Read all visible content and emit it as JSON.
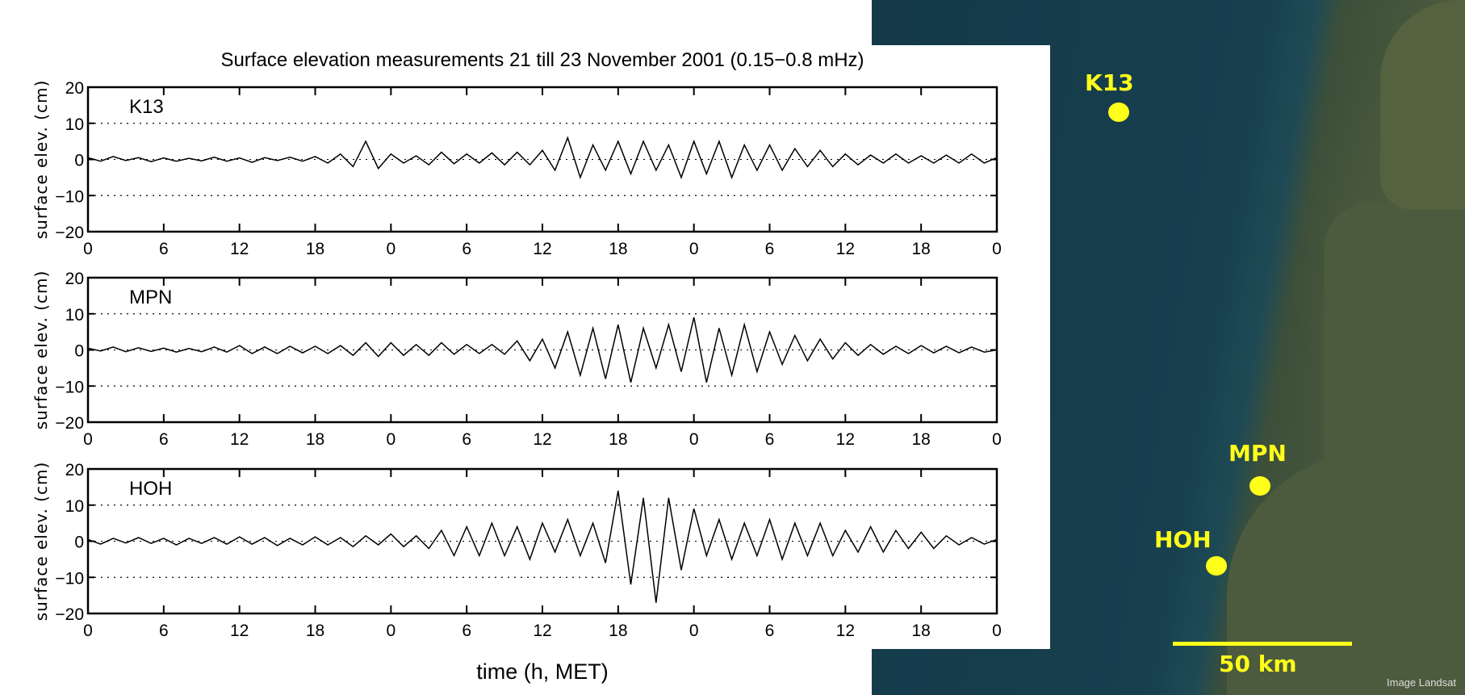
{
  "chart_data": {
    "type": "line",
    "title": "Surface elevation measurements 21 till 23 November 2001 (0.15−0.8 mHz)",
    "xlabel": "time (h, MET)",
    "ylabel": "surface elev. (cm)",
    "xlim": [
      0,
      72
    ],
    "ylim": [
      -20,
      20
    ],
    "xticks": [
      0,
      6,
      12,
      18,
      24,
      30,
      36,
      42,
      48,
      54,
      60,
      66,
      72
    ],
    "xtick_labels": [
      "0",
      "6",
      "12",
      "18",
      "0",
      "6",
      "12",
      "18",
      "0",
      "6",
      "12",
      "18",
      "0"
    ],
    "yticks": [
      -20,
      -10,
      0,
      10,
      20
    ],
    "ytick_labels": [
      "−20",
      "−10",
      "0",
      "10",
      "20"
    ],
    "grid": "dotted at ±10",
    "x_step_hours": 1,
    "series": [
      {
        "name": "K13",
        "values": [
          0.5,
          -0.5,
          0.8,
          -0.3,
          0.5,
          -0.6,
          0.4,
          -0.5,
          0.3,
          -0.4,
          0.6,
          -0.5,
          0.4,
          -0.8,
          0.5,
          -0.3,
          0.6,
          -0.5,
          0.8,
          -1.0,
          1.5,
          -2,
          5,
          -2.5,
          1.5,
          -1,
          1,
          -1.5,
          2,
          -1.2,
          1.5,
          -1,
          1.8,
          -1.5,
          2,
          -1.5,
          2.5,
          -3,
          6,
          -5,
          4,
          -3,
          5,
          -4,
          5,
          -3,
          4,
          -5,
          5,
          -4,
          5,
          -5,
          4,
          -3,
          4,
          -3,
          3,
          -2,
          2.5,
          -2,
          1.5,
          -1.5,
          1.2,
          -1,
          1.5,
          -1,
          1,
          -1,
          1.2,
          -1,
          1.5,
          -1,
          0.5
        ]
      },
      {
        "name": "MPN",
        "values": [
          0.5,
          -0.3,
          0.8,
          -0.5,
          0.6,
          -0.4,
          0.5,
          -0.6,
          0.4,
          -0.5,
          0.8,
          -0.6,
          1.2,
          -1,
          0.8,
          -1,
          1,
          -0.8,
          1,
          -1,
          1.2,
          -1.5,
          2,
          -1.8,
          2,
          -1.5,
          1.5,
          -1.5,
          2,
          -1.2,
          1.5,
          -1,
          1.5,
          -1.2,
          2.5,
          -3,
          3,
          -5,
          5,
          -7,
          6,
          -8,
          7,
          -9,
          6,
          -5,
          7,
          -6,
          9,
          -9,
          6,
          -7,
          7,
          -6,
          5,
          -4,
          4,
          -3,
          3,
          -2.5,
          2,
          -1.5,
          1.5,
          -1.2,
          1,
          -1,
          1.2,
          -0.8,
          1,
          -0.8,
          0.8,
          -0.6,
          0
        ]
      },
      {
        "name": "HOH",
        "values": [
          0.5,
          -0.8,
          0.8,
          -0.5,
          1,
          -0.6,
          0.8,
          -1,
          0.8,
          -0.6,
          1,
          -0.8,
          1.2,
          -0.8,
          1,
          -1.2,
          0.8,
          -1,
          1.2,
          -1,
          1,
          -1.5,
          1.5,
          -1,
          2,
          -1.5,
          1.5,
          -2,
          3,
          -4,
          4,
          -4,
          5,
          -4,
          4,
          -5,
          5,
          -3,
          6,
          -4,
          5,
          -6,
          14,
          -12,
          12,
          -17,
          12,
          -8,
          9,
          -4,
          6,
          -5,
          5,
          -4,
          6,
          -5,
          5,
          -4,
          5,
          -4,
          3,
          -3,
          4,
          -3,
          3,
          -2,
          2.5,
          -2,
          1.5,
          -1,
          1,
          -0.8,
          0.5
        ]
      }
    ]
  },
  "map": {
    "stations": [
      "K13",
      "MPN",
      "HOH"
    ],
    "scale_label": "50 km",
    "credit": "Image Landsat",
    "marker_color": "#ffff1a"
  }
}
